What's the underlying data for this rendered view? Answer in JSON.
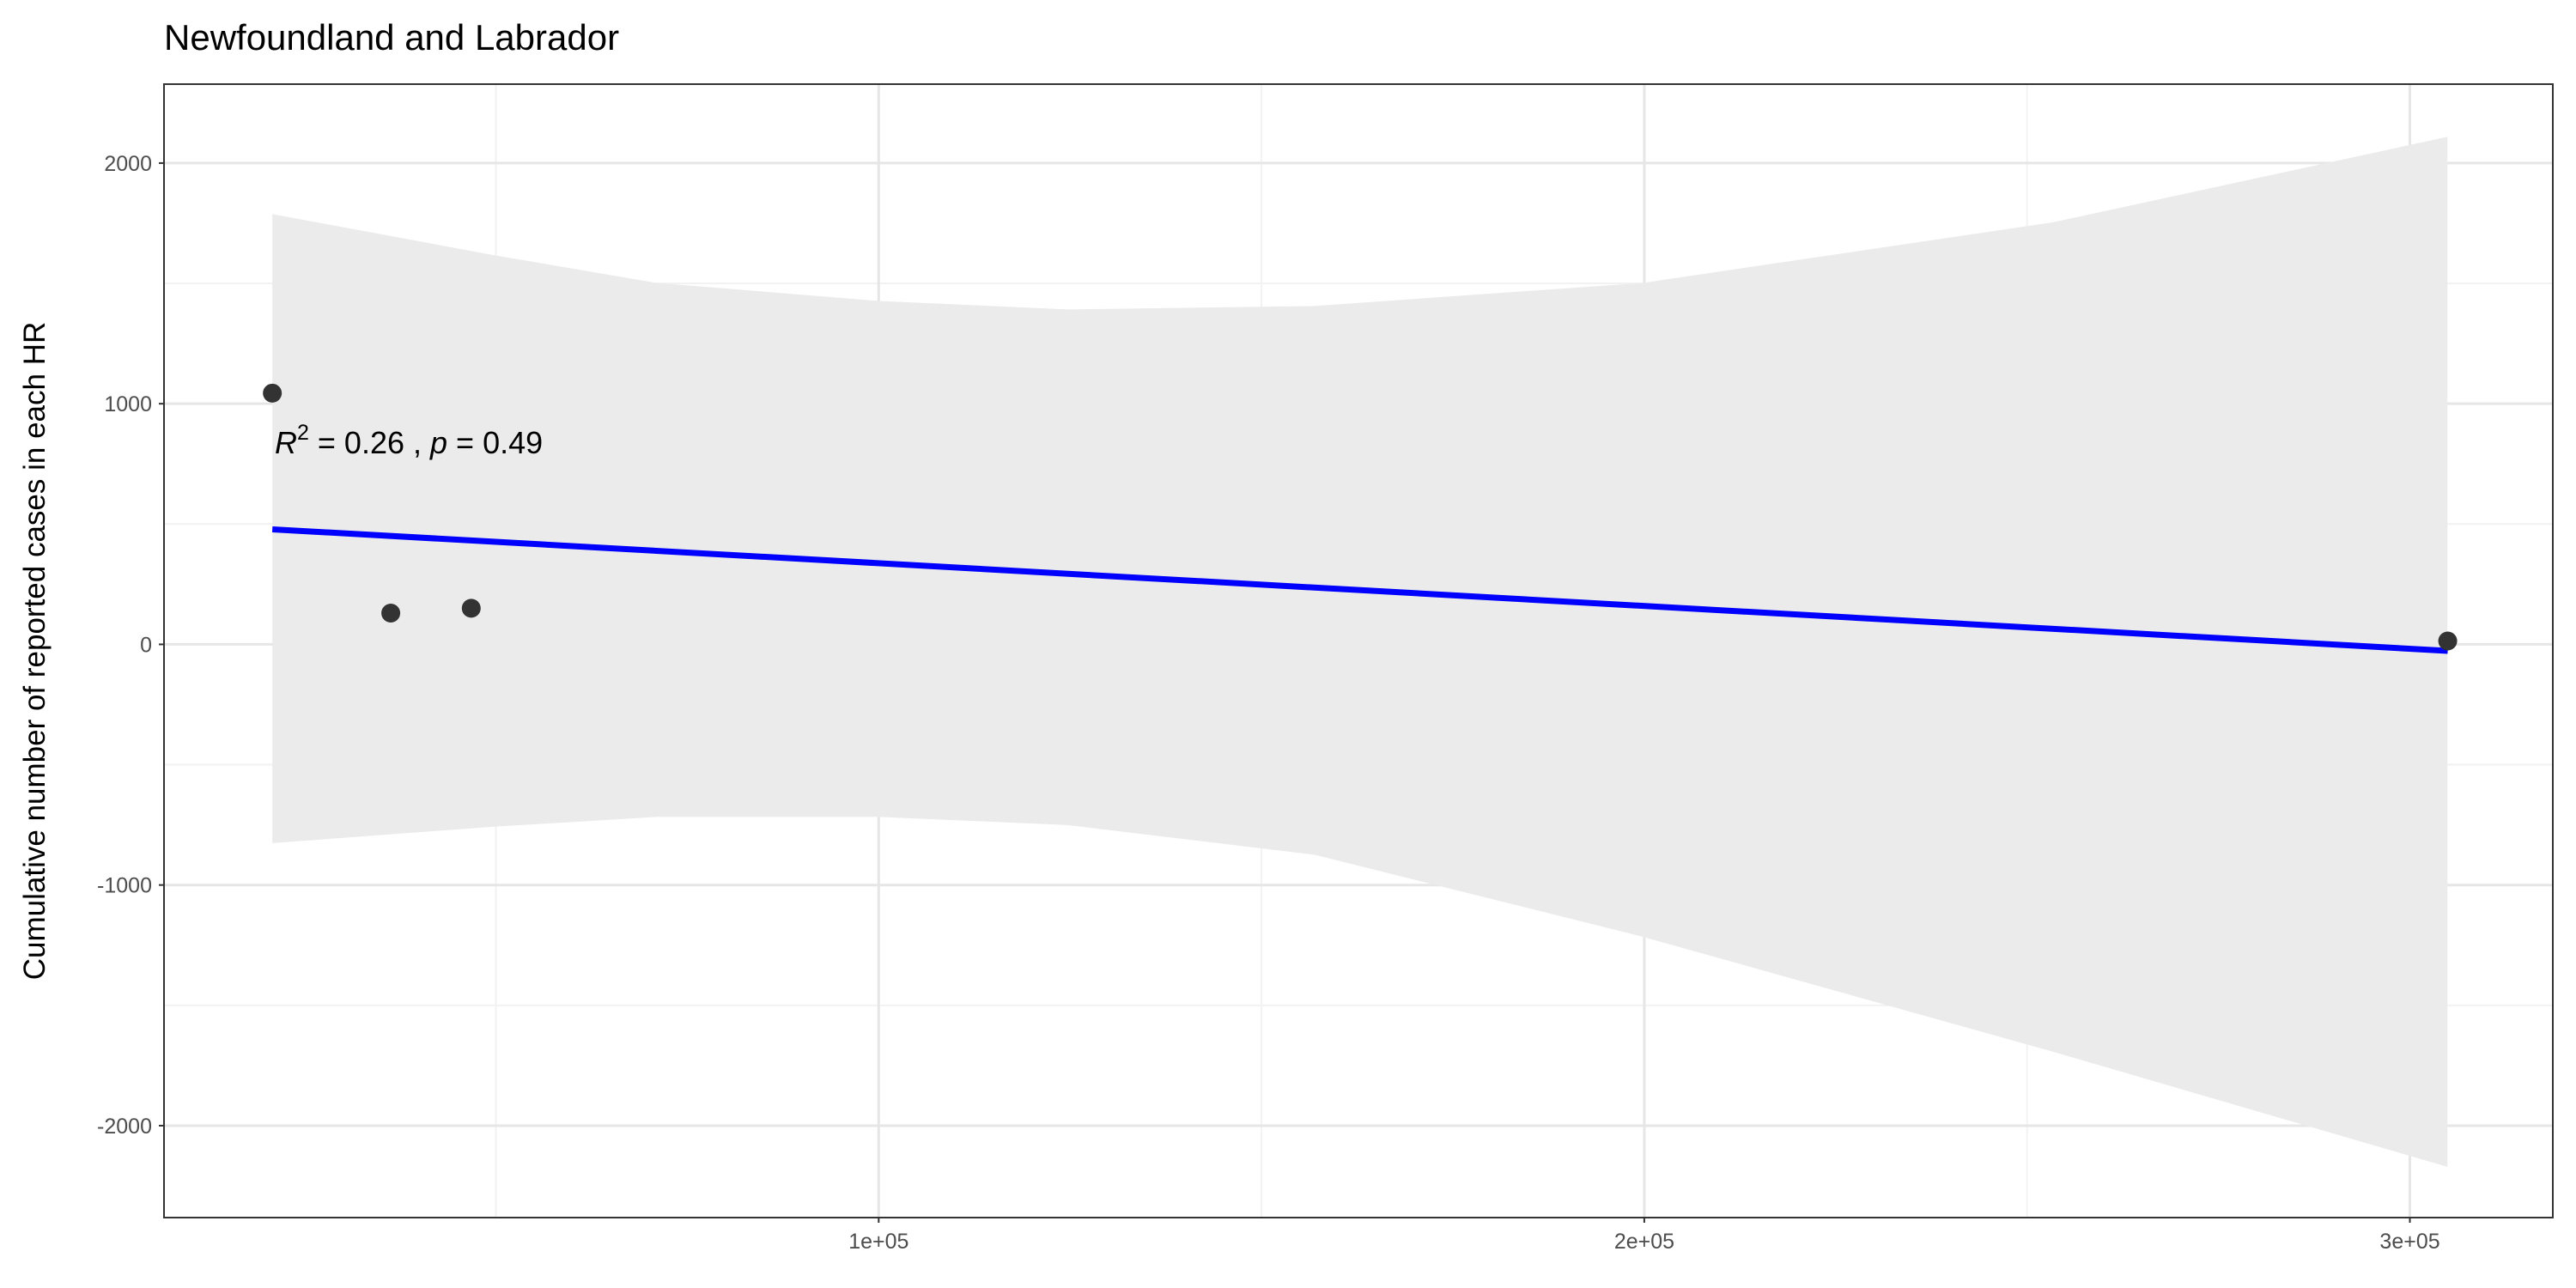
{
  "chart_data": {
    "type": "scatter",
    "title": "Newfoundland and Labrador",
    "y_label": "Cumulative number of reported cases in each HR",
    "annotation": {
      "r": "R",
      "r_power": "2",
      "r_text": " = 0.26 , ",
      "p": "p",
      "p_text": " = 0.49"
    },
    "points": {
      "x": [
        20800,
        36270,
        46780,
        304940
      ],
      "values": [
        1044,
        130,
        150,
        14
      ],
      "color": "#333333"
    },
    "fit": {
      "x": [
        20800,
        304940
      ],
      "values": [
        478,
        -27
      ],
      "color": "#0000ff"
    },
    "band": {
      "x": [
        20800,
        49600,
        71000,
        100000,
        124700,
        156900,
        199800,
        253400,
        304900
      ],
      "upper": [
        1788,
        1618,
        1502,
        1427,
        1392,
        1406,
        1502,
        1754,
        2109
      ],
      "lower": [
        -826,
        -758,
        -717,
        -717,
        -751,
        -874,
        -1215,
        -1693,
        -2171
      ],
      "color": "#ebebeb"
    },
    "xlim": [
      6650,
      318670
    ],
    "ylim": [
      -2382,
      2328
    ],
    "xticks": [
      {
        "value": 100000,
        "label": "1e+05"
      },
      {
        "value": 200000,
        "label": "2e+05"
      },
      {
        "value": 300000,
        "label": "3e+05"
      }
    ],
    "yticks": [
      -2000,
      -1000,
      0,
      1000,
      2000
    ],
    "minor_xticks": [
      50000,
      150000,
      250000
    ],
    "minor_yticks": [
      -1500,
      -500,
      500,
      1500
    ],
    "grid": true
  }
}
